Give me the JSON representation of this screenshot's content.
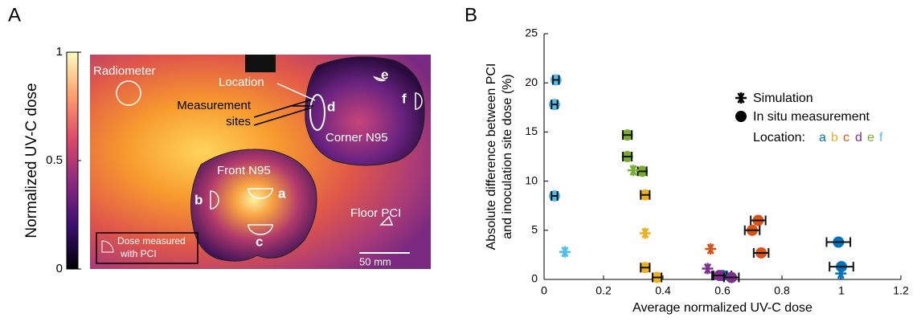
{
  "panel_a": {
    "label": "A",
    "colorbar": {
      "title": "Normalized UV-C dose",
      "lim": [
        0,
        1
      ],
      "ticks": [
        0,
        0.5,
        1
      ]
    },
    "annotations": {
      "radiometer": "Radiometer",
      "location": "Location",
      "measurement_sites": [
        "Measurement",
        "sites"
      ],
      "corner": "Corner N95",
      "front": "Front N95",
      "floor": "Floor PCI",
      "dose_measured": [
        "Dose measured",
        "with PCI"
      ],
      "scale": "50 mm"
    },
    "site_letters": [
      "a",
      "b",
      "c",
      "d",
      "e",
      "f"
    ]
  },
  "chart_data": {
    "type": "scatter",
    "panel_label": "B",
    "xlabel": "Average normalized UV-C dose",
    "ylabel": [
      "Absolute difference between PCI",
      "and inoculation site dose (%)"
    ],
    "xlim": [
      0,
      1.2
    ],
    "xticks": [
      0,
      0.2,
      0.4,
      0.6,
      0.8,
      1,
      1.2
    ],
    "ylim": [
      0,
      25
    ],
    "yticks": [
      0,
      5,
      10,
      15,
      20,
      25
    ],
    "legend": {
      "simulation": "Simulation",
      "measurement": "In situ measurement",
      "location": "Location:"
    },
    "series": [
      {
        "name": "a",
        "color": "#0072bd",
        "x": [
          0.99,
          1.0,
          0.6
        ],
        "values": [
          3.8,
          1.3,
          0.4
        ],
        "xerr": [
          0.04,
          0.04,
          0.03
        ],
        "sim_x": [
          0.998
        ],
        "sim_values": [
          0.6
        ]
      },
      {
        "name": "b",
        "color": "#edb120",
        "x": [
          0.34,
          0.34,
          0.38
        ],
        "values": [
          8.6,
          1.2,
          0.2
        ],
        "xerr": [
          0.015,
          0.015,
          0.015
        ],
        "sim_x": [
          0.34
        ],
        "sim_values": [
          4.7
        ]
      },
      {
        "name": "c",
        "color": "#d95319",
        "x": [
          0.72,
          0.7,
          0.73
        ],
        "values": [
          6.0,
          5.0,
          2.7
        ],
        "xerr": [
          0.025,
          0.025,
          0.025
        ],
        "sim_x": [
          0.56
        ],
        "sim_values": [
          3.1
        ]
      },
      {
        "name": "d",
        "color": "#7e2f8e",
        "x": [
          0.59,
          0.63
        ],
        "values": [
          0.4,
          0.2
        ],
        "xerr": [
          0.025,
          0.025
        ],
        "sim_x": [
          0.55
        ],
        "sim_values": [
          1.1
        ]
      },
      {
        "name": "e",
        "color": "#77ac30",
        "x": [
          0.28,
          0.28,
          0.33
        ],
        "values": [
          14.7,
          12.5,
          11.0
        ],
        "xerr": [
          0.015,
          0.015,
          0.015
        ],
        "sim_x": [
          0.3
        ],
        "sim_values": [
          11.1
        ]
      },
      {
        "name": "f",
        "color": "#4dbeee",
        "x": [
          0.04,
          0.035,
          0.035
        ],
        "values": [
          20.3,
          17.8,
          8.5
        ],
        "xerr": [
          0.01,
          0.01,
          0.01
        ],
        "sim_x": [
          0.07
        ],
        "sim_values": [
          2.8
        ]
      }
    ]
  }
}
